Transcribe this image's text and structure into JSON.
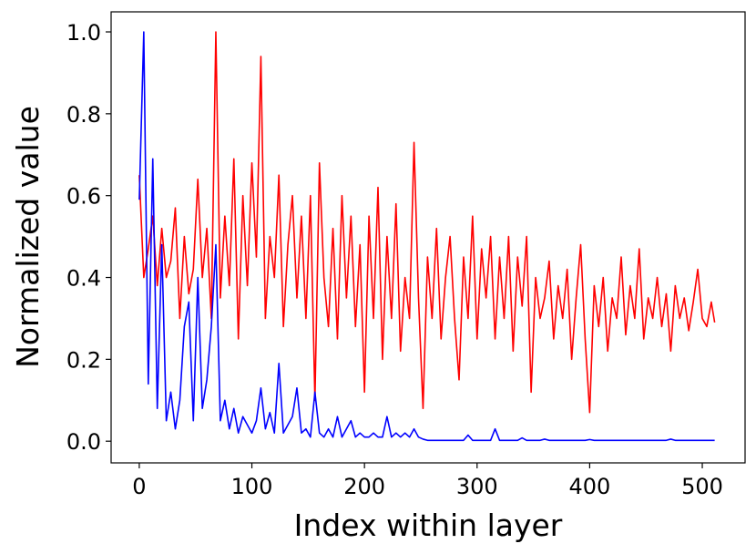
{
  "chart_data": {
    "type": "line",
    "xlabel": "Index within layer",
    "ylabel": "Normalized value",
    "x": [
      0,
      4,
      8,
      12,
      16,
      20,
      24,
      28,
      32,
      36,
      40,
      44,
      48,
      52,
      56,
      60,
      64,
      68,
      72,
      76,
      80,
      84,
      88,
      92,
      96,
      100,
      104,
      108,
      112,
      116,
      120,
      124,
      128,
      132,
      136,
      140,
      144,
      148,
      152,
      156,
      160,
      164,
      168,
      172,
      176,
      180,
      184,
      188,
      192,
      196,
      200,
      204,
      208,
      212,
      216,
      220,
      224,
      228,
      232,
      236,
      240,
      244,
      248,
      252,
      256,
      260,
      264,
      268,
      272,
      276,
      280,
      284,
      288,
      292,
      296,
      300,
      304,
      308,
      312,
      316,
      320,
      324,
      328,
      332,
      336,
      340,
      344,
      348,
      352,
      356,
      360,
      364,
      368,
      372,
      376,
      380,
      384,
      388,
      392,
      396,
      400,
      404,
      408,
      412,
      416,
      420,
      424,
      428,
      432,
      436,
      440,
      444,
      448,
      452,
      456,
      460,
      464,
      468,
      472,
      476,
      480,
      484,
      488,
      492,
      496,
      500,
      504,
      508,
      511
    ],
    "series": [
      {
        "color": "#ff0000",
        "values": [
          0.65,
          0.4,
          0.47,
          0.55,
          0.38,
          0.52,
          0.4,
          0.44,
          0.57,
          0.3,
          0.5,
          0.36,
          0.42,
          0.64,
          0.4,
          0.52,
          0.3,
          1.0,
          0.35,
          0.55,
          0.38,
          0.69,
          0.25,
          0.6,
          0.38,
          0.68,
          0.45,
          0.94,
          0.3,
          0.5,
          0.4,
          0.65,
          0.28,
          0.48,
          0.6,
          0.35,
          0.55,
          0.3,
          0.6,
          0.1,
          0.68,
          0.4,
          0.28,
          0.52,
          0.25,
          0.6,
          0.35,
          0.55,
          0.28,
          0.48,
          0.12,
          0.55,
          0.3,
          0.62,
          0.2,
          0.5,
          0.3,
          0.58,
          0.22,
          0.4,
          0.3,
          0.73,
          0.35,
          0.08,
          0.45,
          0.3,
          0.52,
          0.25,
          0.4,
          0.5,
          0.3,
          0.15,
          0.45,
          0.3,
          0.55,
          0.25,
          0.47,
          0.35,
          0.5,
          0.25,
          0.45,
          0.3,
          0.5,
          0.22,
          0.45,
          0.33,
          0.5,
          0.12,
          0.4,
          0.3,
          0.35,
          0.44,
          0.25,
          0.38,
          0.3,
          0.42,
          0.2,
          0.35,
          0.48,
          0.25,
          0.07,
          0.38,
          0.28,
          0.4,
          0.22,
          0.35,
          0.3,
          0.45,
          0.26,
          0.38,
          0.3,
          0.47,
          0.25,
          0.35,
          0.3,
          0.4,
          0.28,
          0.36,
          0.22,
          0.38,
          0.3,
          0.35,
          0.27,
          0.34,
          0.42,
          0.3,
          0.28,
          0.34,
          0.29
        ]
      },
      {
        "color": "#0000ff",
        "values": [
          0.59,
          1.0,
          0.14,
          0.69,
          0.08,
          0.48,
          0.05,
          0.12,
          0.03,
          0.1,
          0.28,
          0.34,
          0.05,
          0.4,
          0.08,
          0.15,
          0.28,
          0.48,
          0.05,
          0.1,
          0.03,
          0.08,
          0.02,
          0.06,
          0.04,
          0.02,
          0.05,
          0.13,
          0.03,
          0.07,
          0.02,
          0.19,
          0.02,
          0.04,
          0.06,
          0.13,
          0.02,
          0.03,
          0.01,
          0.12,
          0.02,
          0.01,
          0.03,
          0.01,
          0.06,
          0.01,
          0.03,
          0.05,
          0.01,
          0.02,
          0.01,
          0.01,
          0.02,
          0.01,
          0.01,
          0.06,
          0.01,
          0.02,
          0.01,
          0.02,
          0.01,
          0.03,
          0.01,
          0.005,
          0.002,
          0.002,
          0.002,
          0.002,
          0.002,
          0.002,
          0.002,
          0.002,
          0.002,
          0.015,
          0.002,
          0.002,
          0.002,
          0.002,
          0.002,
          0.03,
          0.002,
          0.002,
          0.002,
          0.002,
          0.002,
          0.008,
          0.002,
          0.002,
          0.002,
          0.002,
          0.005,
          0.002,
          0.002,
          0.002,
          0.002,
          0.002,
          0.002,
          0.002,
          0.002,
          0.002,
          0.004,
          0.002,
          0.002,
          0.002,
          0.002,
          0.002,
          0.002,
          0.002,
          0.002,
          0.002,
          0.002,
          0.002,
          0.002,
          0.002,
          0.002,
          0.002,
          0.002,
          0.002,
          0.005,
          0.002,
          0.002,
          0.002,
          0.002,
          0.002,
          0.002,
          0.002,
          0.002,
          0.002,
          0.002
        ]
      }
    ],
    "xlim": [
      -25,
      538
    ],
    "ylim": [
      -0.053,
      1.049
    ],
    "xticks": [
      0,
      100,
      200,
      300,
      400,
      500
    ],
    "yticks": [
      {
        "value": 0,
        "label": "0.0"
      },
      0.2,
      0.4,
      0.6,
      0.8,
      {
        "value": 1,
        "label": "1.0"
      }
    ],
    "grid": false
  }
}
